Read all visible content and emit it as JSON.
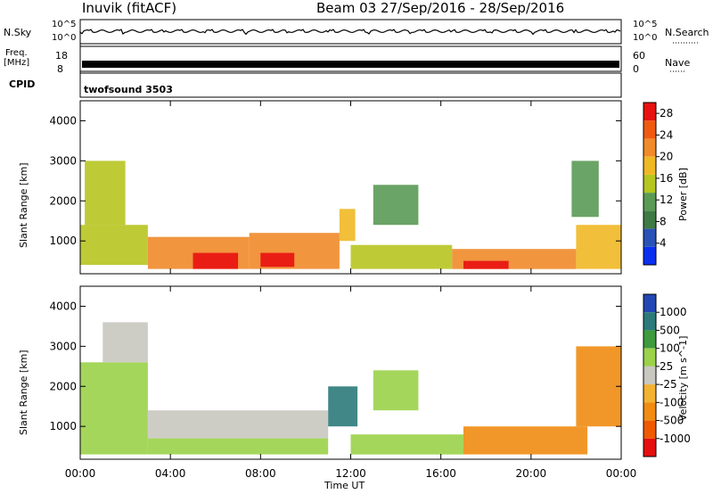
{
  "header": {
    "station": "Inuvik (fitACF)",
    "beam_and_dates": "Beam 03  27/Sep/2016 - 28/Sep/2016"
  },
  "top_panels": {
    "nsky_label": "N.Sky",
    "nsky_ticks": [
      "10^5",
      "10^0"
    ],
    "nsearch_label": "N.Search",
    "nsearch_ticks": [
      "10^5",
      "10^0"
    ],
    "freq_label": "Freq.",
    "freq_unit": "[MHz]",
    "freq_ticks": [
      "18",
      "8"
    ],
    "nave_label": "Nave",
    "nave_ticks": [
      "60",
      "0"
    ],
    "cpid_label": "CPID",
    "cpid_value": "twofsound 3503"
  },
  "colors": {
    "power_scale": [
      "#0b2ff0",
      "#2a52b6",
      "#3f7a45",
      "#5a9a55",
      "#b7c520",
      "#efb825",
      "#f08a2a",
      "#ef5a10",
      "#e81010"
    ],
    "velocity_scale": [
      "#e50f0f",
      "#ef5a00",
      "#f08c12",
      "#f3b232",
      "#c8c8c0",
      "#9bd24a",
      "#3d9a3d",
      "#2c7a7a",
      "#2246b2"
    ]
  },
  "chart_data": [
    {
      "type": "heatmap",
      "title": "",
      "ylabel": "Slant Range [km]",
      "xlabel": "",
      "ylim": [
        180,
        4500
      ],
      "yticks": [
        "1000",
        "2000",
        "3000",
        "4000"
      ],
      "colorbar": {
        "label": "Power [dB]",
        "ticks": [
          "4",
          "8",
          "12",
          "16",
          "20",
          "24",
          "28"
        ],
        "range": [
          0,
          30
        ]
      },
      "x_ticks": [
        "00:00",
        "04:00",
        "08:00",
        "12:00",
        "16:00",
        "20:00",
        "00:00"
      ],
      "regions": [
        {
          "t": [
            0.0,
            3.0
          ],
          "r": [
            400,
            1400
          ],
          "value": 16
        },
        {
          "t": [
            0.2,
            2.0
          ],
          "r": [
            1400,
            3000
          ],
          "value": 14
        },
        {
          "t": [
            3.0,
            7.5
          ],
          "r": [
            300,
            1100
          ],
          "value": 22
        },
        {
          "t": [
            5.0,
            7.0
          ],
          "r": [
            300,
            700
          ],
          "value": 28
        },
        {
          "t": [
            7.5,
            11.5
          ],
          "r": [
            300,
            1200
          ],
          "value": 22
        },
        {
          "t": [
            8.0,
            9.5
          ],
          "r": [
            350,
            700
          ],
          "value": 27
        },
        {
          "t": [
            11.5,
            12.2
          ],
          "r": [
            1000,
            1800
          ],
          "value": 18
        },
        {
          "t": [
            12.0,
            16.5
          ],
          "r": [
            300,
            900
          ],
          "value": 14
        },
        {
          "t": [
            13.0,
            15.0
          ],
          "r": [
            1400,
            2400
          ],
          "value": 10
        },
        {
          "t": [
            16.5,
            22.0
          ],
          "r": [
            300,
            800
          ],
          "value": 20
        },
        {
          "t": [
            17.0,
            19.0
          ],
          "r": [
            300,
            500
          ],
          "value": 28
        },
        {
          "t": [
            22.0,
            24.0
          ],
          "r": [
            300,
            1400
          ],
          "value": 17
        },
        {
          "t": [
            21.8,
            23.0
          ],
          "r": [
            1600,
            3000
          ],
          "value": 10
        }
      ]
    },
    {
      "type": "heatmap",
      "title": "",
      "ylabel": "Slant Range [km]",
      "xlabel": "Time UT",
      "ylim": [
        180,
        4500
      ],
      "yticks": [
        "1000",
        "2000",
        "3000",
        "4000"
      ],
      "colorbar": {
        "label": "Velocity [m s^-1]",
        "ticks": [
          "1000",
          "500",
          "100",
          "25",
          "-25",
          "-100",
          "-500",
          "-1000"
        ]
      },
      "x_ticks": [
        "00:00",
        "04:00",
        "08:00",
        "12:00",
        "16:00",
        "20:00",
        "00:00"
      ],
      "regions": [
        {
          "t": [
            0.0,
            3.0
          ],
          "r": [
            300,
            2600
          ],
          "value": 60
        },
        {
          "t": [
            1.0,
            3.0
          ],
          "r": [
            2600,
            3600
          ],
          "value": 0
        },
        {
          "t": [
            3.0,
            11.0
          ],
          "r": [
            700,
            1400
          ],
          "value": 0
        },
        {
          "t": [
            3.0,
            11.0
          ],
          "r": [
            300,
            700
          ],
          "value": 80
        },
        {
          "t": [
            11.0,
            12.3
          ],
          "r": [
            1000,
            2000
          ],
          "value": 600
        },
        {
          "t": [
            12.0,
            17.0
          ],
          "r": [
            300,
            800
          ],
          "value": 60
        },
        {
          "t": [
            13.0,
            15.0
          ],
          "r": [
            1400,
            2400
          ],
          "value": 80
        },
        {
          "t": [
            17.0,
            22.5
          ],
          "r": [
            300,
            1000
          ],
          "value": -120
        },
        {
          "t": [
            22.0,
            24.0
          ],
          "r": [
            1000,
            3000
          ],
          "value": -120
        }
      ]
    }
  ]
}
